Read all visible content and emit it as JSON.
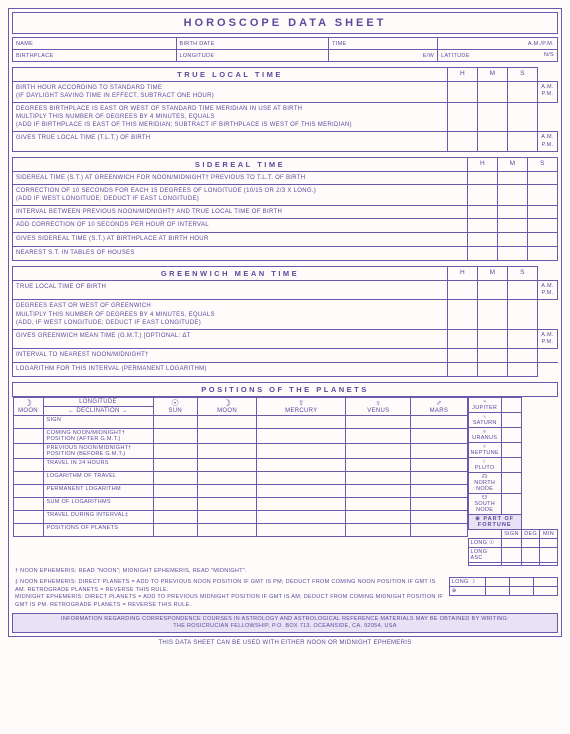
{
  "title": "HOROSCOPE DATA SHEET",
  "colors": {
    "ink": "#5a4a9c",
    "border": "#6a5aac",
    "bg": "#fdfcfb",
    "accent": "#e8e2f5"
  },
  "header": {
    "name": "NAME",
    "birth_date": "BIRTH DATE",
    "time": "TIME",
    "ampm": "A.M./P.M.",
    "birthplace": "BIRTHPLACE",
    "longitude": "LONGITUDE",
    "ew": "E/W",
    "latitude": "LATITUDE",
    "ns": "N/S"
  },
  "hms": {
    "h": "H",
    "m": "M",
    "s": "S"
  },
  "ampm_lines": "A.M.\nP.M.",
  "tlt": {
    "title": "TRUE LOCAL TIME",
    "r1": "BIRTH HOUR ACCORDING TO STANDARD TIME\n(IF DAYLIGHT SAVING TIME IN EFFECT, SUBTRACT ONE HOUR)",
    "r2": "DEGREES BIRTHPLACE IS EAST OR WEST OF STANDARD TIME MERIDIAN IN USE AT BIRTH\nMULTIPLY THIS NUMBER OF DEGREES BY 4 MINUTES, EQUALS\n(ADD IF BIRTHPLACE IS EAST OF THIS MERIDIAN; SUBTRACT IF BIRTHPLACE IS WEST OF THIS MERIDIAN)",
    "r3": "GIVES TRUE LOCAL TIME (T.L.T.) OF BIRTH"
  },
  "sid": {
    "title": "SIDEREAL TIME",
    "r1": "SIDEREAL TIME (S.T.) AT GREENWICH FOR NOON/MIDNIGHT† PREVIOUS TO T.L.T. OF BIRTH",
    "r2": "CORRECTION OF 10 SECONDS FOR EACH 15 DEGREES OF LONGITUDE (10/15 OR 2/3 X LONG.)\n(ADD IF WEST LONGITUDE; DEDUCT IF EAST LONGITUDE)",
    "r3": "INTERVAL BETWEEN PREVIOUS NOON/MIDNIGHT† AND TRUE LOCAL TIME OF BIRTH",
    "r4": "ADD CORRECTION OF 10 SECONDS PER HOUR OF INTERVAL",
    "r5": "GIVES SIDEREAL TIME (S.T.) AT BIRTHPLACE AT BIRTH HOUR",
    "r6": "NEAREST S.T. IN TABLES OF HOUSES"
  },
  "gmt": {
    "title": "GREENWICH MEAN TIME",
    "r1": "TRUE LOCAL TIME OF BIRTH",
    "r2": "DEGREES EAST OR WEST OF GREENWICH\nMULTIPLY THIS NUMBER OF DEGREES BY 4 MINUTES, EQUALS\n(ADD, IF WEST LONGITUDE; DEDUCT IF EAST LONGITUDE)",
    "r3": "GIVES GREENWICH MEAN TIME (G.M.T.)  [OPTIONAL: ΔT",
    "r4": "INTERVAL TO NEAREST NOON/MIDNIGHT†",
    "r5": "LOGARITHM FOR THIS INTERVAL (PERMANENT LOGARITHM)"
  },
  "planets": {
    "title": "POSITIONS OF THE PLANETS",
    "moon_hdr": "MOON",
    "long_hdr": "LONGITUDE",
    "decl_hdr": "DECLINATION",
    "cols": [
      "SUN",
      "MOON",
      "MERCURY",
      "VENUS",
      "MARS"
    ],
    "syms": [
      "☉",
      "☽",
      "☿",
      "♀",
      "♂"
    ],
    "moon_sym": "☽",
    "rows": [
      "SIGN",
      "COMING NOON/MIDNIGHT† POSITION (AFTER G.M.T.)",
      "PREVIOUS NOON/MIDNIGHT† POSITION (BEFORE G.M.T.)",
      "TRAVEL IN 24 HOURS",
      "LOGARITHM OF TRAVEL",
      "PERMANENT LOGARITHM",
      "SUM OF LOGARITHMS",
      "TRAVEL DURING INTERVAL‡",
      "POSITIONS OF PLANETS"
    ],
    "side": [
      {
        "sym": "♃",
        "name": "JUPITER"
      },
      {
        "sym": "♄",
        "name": "SATURN"
      },
      {
        "sym": "♅",
        "name": "URANUS"
      },
      {
        "sym": "♆",
        "name": "NEPTUNE"
      },
      {
        "sym": "♇",
        "name": "PLUTO"
      },
      {
        "sym": "☊",
        "name": "NORTH NODE"
      },
      {
        "sym": "☋",
        "name": "SOUTH NODE"
      }
    ],
    "pof": "⊕ PART OF FORTUNE",
    "pof_cols": [
      "SIGN",
      "DEG",
      "MIN"
    ],
    "pof_rows": [
      "LONG ☉",
      "LONG ASC",
      "",
      "LONG ☽",
      "⊕"
    ]
  },
  "foot": {
    "n1": "† NOON EPHEMERIS: READ \"NOON\"; MIDNIGHT EPHEMERIS, READ \"MIDNIGHT\".",
    "n2": "‡ NOON EPHEMERIS: DIRECT PLANETS = ADD TO PREVIOUS NOON POSITION IF GMT IS PM; DEDUCT FROM COMING NOON POSITION IF GMT IS AM. RETROGRADE PLANETS = REVERSE THIS RULE.\nMIDNIGHT EPHEMERIS: DIRECT PLANETS = ADD TO PREVIOUS MIDNIGHT POSITION IF GMT IS AM; DEDUCT FROM COMING MIDNIGHT POSITION IF GMT IS PM. RETROGRADE PLANETS = REVERSE THIS RULE.",
    "info": "INFORMATION REGARDING CORRESPONDENCE COURSES IN ASTROLOGY AND ASTROLOGICAL REFERENCE MATERIALS MAY BE OBTAINED BY WRITING:\nTHE ROSICRUCIAN FELLOWSHIP, P.O. BOX 713, OCEANSIDE, CA. 92054, USA",
    "bottom": "THIS DATA SHEET CAN BE USED WITH EITHER NOON OR MIDNIGHT EPHEMERIS"
  }
}
